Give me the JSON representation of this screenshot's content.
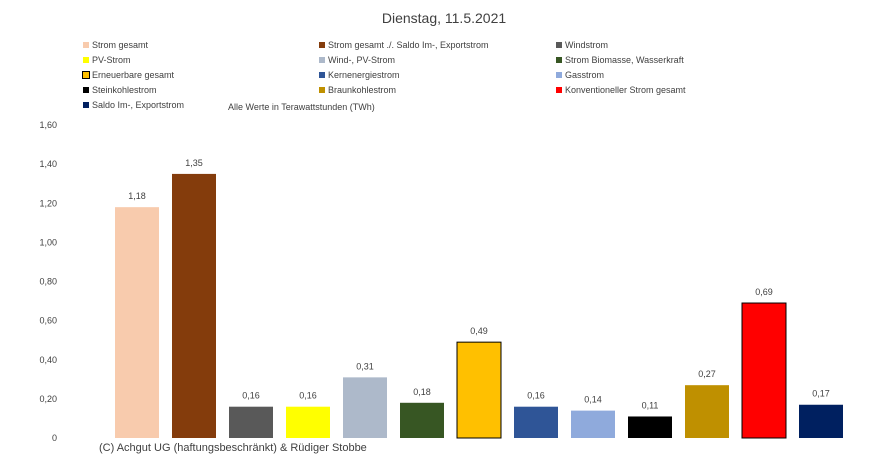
{
  "title": "Dienstag, 11.5.2021",
  "note": "Alle Werte in Terawattstunden (TWh)",
  "copyright": "(C) Achgut UG (haftungsbeschränkt) & Rüdiger Stobbe",
  "legend": [
    {
      "label": "Strom gesamt",
      "color": "#f8cbad"
    },
    {
      "label": "Strom gesamt ./. Saldo Im-, Exportstrom",
      "color": "#843c0c"
    },
    {
      "label": "Windstrom",
      "color": "#595959"
    },
    {
      "label": "PV-Strom",
      "color": "#ffff00"
    },
    {
      "label": "Wind-, PV-Strom",
      "color": "#adb9ca"
    },
    {
      "label": "Strom Biomasse, Wasserkraft",
      "color": "#375623"
    },
    {
      "label": "Erneuerbare gesamt",
      "color": "#ffc000"
    },
    {
      "label": "Kernenergiestrom",
      "color": "#2f5597"
    },
    {
      "label": "Gasstrom",
      "color": "#8faadc"
    },
    {
      "label": "Steinkohlestrom",
      "color": "#000000"
    },
    {
      "label": "Braunkohlestrom",
      "color": "#bf9000"
    },
    {
      "label": "Konventioneller Strom gesamt",
      "color": "#ff0000"
    },
    {
      "label": "Saldo Im-, Exportstrom",
      "color": "#002060"
    }
  ],
  "chart_data": {
    "type": "bar",
    "title": "Dienstag, 11.5.2021",
    "xlabel": "",
    "ylabel": "",
    "ylim": [
      0,
      1.6
    ],
    "y_ticks": [
      "0",
      "0,20",
      "0,40",
      "0,60",
      "0,80",
      "1,00",
      "1,20",
      "1,40",
      "1,60"
    ],
    "categories": [
      "Strom gesamt",
      "Strom gesamt ./. Saldo Im-, Exportstrom",
      "Windstrom",
      "PV-Strom",
      "Wind-, PV-Strom",
      "Strom Biomasse, Wasserkraft",
      "Erneuerbare gesamt",
      "Kernenergiestrom",
      "Gasstrom",
      "Steinkohlestrom",
      "Braunkohlestrom",
      "Konventioneller Strom gesamt",
      "Saldo Im-, Exportstrom"
    ],
    "values": [
      1.18,
      1.35,
      0.16,
      0.16,
      0.31,
      0.18,
      0.49,
      0.16,
      0.14,
      0.11,
      0.27,
      0.69,
      0.17
    ],
    "value_labels": [
      "1,18",
      "1,35",
      "0,16",
      "0,16",
      "0,31",
      "0,18",
      "0,49",
      "0,16",
      "0,14",
      "0,11",
      "0,27",
      "0,69",
      "0,17"
    ],
    "colors": [
      "#f8cbad",
      "#843c0c",
      "#595959",
      "#ffff00",
      "#adb9ca",
      "#375623",
      "#ffc000",
      "#2f5597",
      "#8faadc",
      "#000000",
      "#bf9000",
      "#ff0000",
      "#002060"
    ],
    "grid": false,
    "legend_position": "top"
  }
}
